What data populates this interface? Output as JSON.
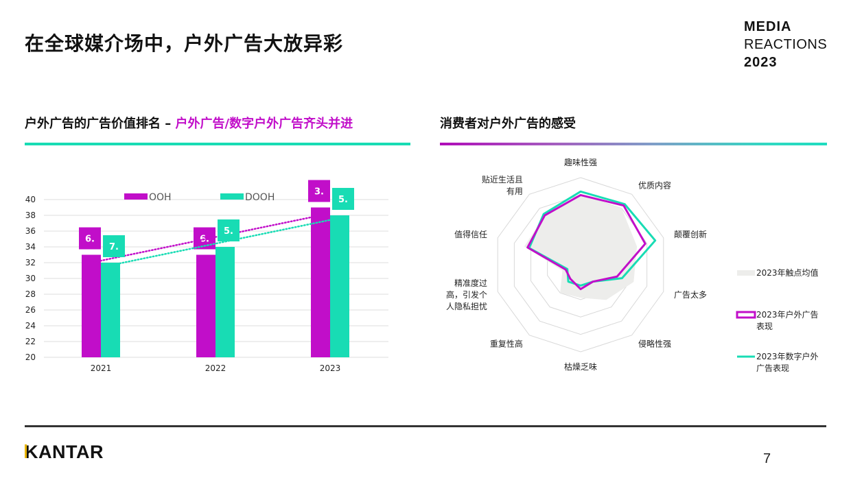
{
  "title": "在全球媒介场中，户外广告大放异彩",
  "brand": {
    "line1": "MEDIA",
    "line2": "REACTIONS",
    "line3": "2023"
  },
  "left_section": {
    "title_prefix": "户外广告的广告价值排名 – ",
    "title_highlight": "户外广告/数字户外广告齐头并进"
  },
  "right_section": {
    "title": "消费者对户外广告的感受"
  },
  "footer": {
    "logo": "KANTAR",
    "page_number": "7"
  },
  "colors": {
    "ooh": "#c10ec9",
    "dooh": "#18dcb4",
    "average": "#ededeb"
  },
  "chart_data": [
    {
      "type": "bar",
      "categories": [
        "2021",
        "2022",
        "2023"
      ],
      "series": [
        {
          "name": "OOH",
          "values": [
            33,
            33,
            39
          ],
          "rank_labels": [
            "6.",
            "6.",
            "3."
          ]
        },
        {
          "name": "DOOH",
          "values": [
            32,
            34,
            38
          ],
          "rank_labels": [
            "7.",
            "5.",
            "5."
          ]
        }
      ],
      "ylim": [
        20,
        40
      ],
      "yticks": [
        20,
        22,
        24,
        26,
        28,
        30,
        32,
        34,
        36,
        38,
        40
      ],
      "trendlines": "dotted linear trend per series",
      "grid": true,
      "legend": "top"
    },
    {
      "type": "radar",
      "axes": [
        "趣味性强",
        "优质内容",
        "颠覆创新",
        "广告太多",
        "侵略性强",
        "枯燥乏味",
        "重复性高",
        "精准度过高，引发个人隐私担忧",
        "值得信任",
        "贴近生活且有用"
      ],
      "axis_label_lines": [
        [
          "趣味性强"
        ],
        [
          "优质内容"
        ],
        [
          "颠覆创新"
        ],
        [
          "广告太多"
        ],
        [
          "侵略性强"
        ],
        [
          "枯燥乏味"
        ],
        [
          "重复性高"
        ],
        [
          "精准度过",
          "高，引发个",
          "人隐私担忧"
        ],
        [
          "值得信任"
        ],
        [
          "贴近生活且",
          "有用"
        ]
      ],
      "scale": [
        0,
        5
      ],
      "series": [
        {
          "name": "2023年触点均值",
          "values": [
            4.0,
            4.0,
            3.4,
            3.2,
            2.5,
            1.9,
            2.0,
            1.1,
            3.4,
            3.5
          ]
        },
        {
          "name": "2023年户外广告表现",
          "values": [
            4.0,
            4.2,
            3.9,
            2.2,
            1.2,
            1.4,
            1.0,
            0.9,
            3.2,
            3.5
          ]
        },
        {
          "name": "2023年数字户外广告表现",
          "values": [
            4.2,
            4.3,
            4.5,
            2.5,
            1.2,
            1.2,
            1.2,
            0.8,
            3.1,
            3.6
          ]
        }
      ],
      "legend_lines": [
        [
          "2023年触点均值"
        ],
        [
          "2023年户外广告",
          "表现"
        ],
        [
          "2023年数字户外",
          "广告表现"
        ]
      ],
      "legend": "right"
    }
  ]
}
